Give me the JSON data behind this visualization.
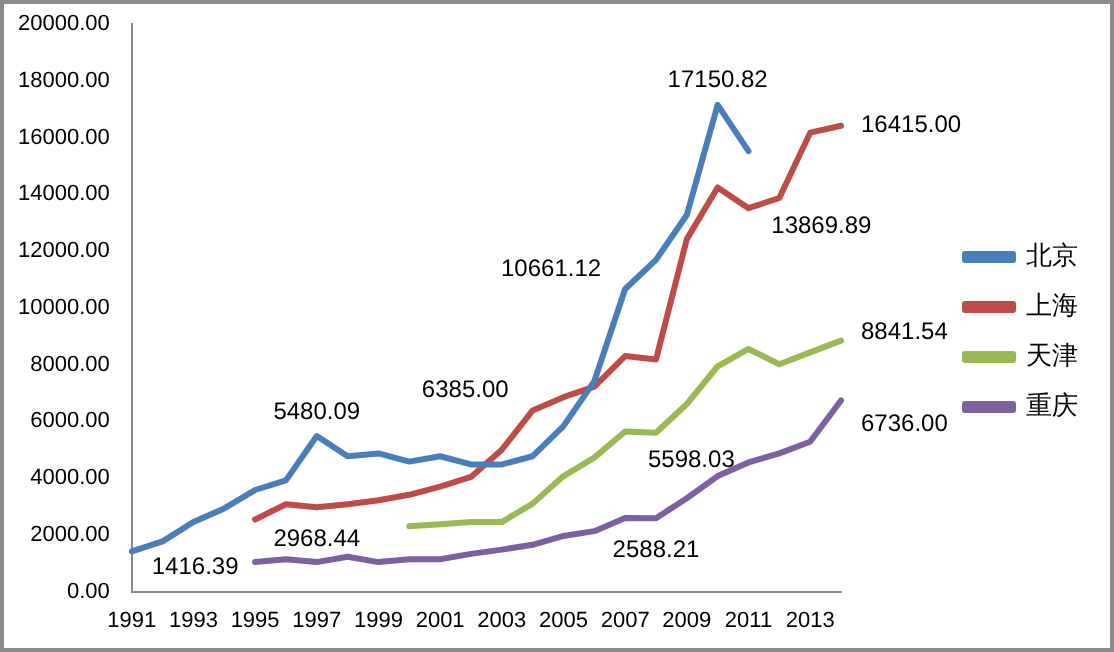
{
  "chart_data": {
    "type": "line",
    "categories": [
      "1991",
      null,
      "1993",
      null,
      "1995",
      null,
      "1997",
      null,
      "1999",
      null,
      "2001",
      null,
      "2003",
      null,
      "2005",
      null,
      "2007",
      null,
      "2009",
      null,
      "2011",
      null,
      "2013",
      null
    ],
    "ylim": [
      0,
      20000
    ],
    "yticks": [
      {
        "value": 0,
        "label": "0.00"
      },
      {
        "value": 2000,
        "label": "2000.00"
      },
      {
        "value": 4000,
        "label": "4000.00"
      },
      {
        "value": 6000,
        "label": "6000.00"
      },
      {
        "value": 8000,
        "label": "8000.00"
      },
      {
        "value": 10000,
        "label": "10000.00"
      },
      {
        "value": 12000,
        "label": "12000.00"
      },
      {
        "value": 14000,
        "label": "14000.00"
      },
      {
        "value": 16000,
        "label": "16000.00"
      },
      {
        "value": 18000,
        "label": "18000.00"
      },
      {
        "value": 20000,
        "label": "20000.00"
      }
    ],
    "grid": false,
    "legend": "right",
    "marker": "none",
    "line_style": "solid",
    "series": [
      {
        "name": "北京",
        "color": "#4a7ebb",
        "values": [
          1416.39,
          1770,
          2450,
          2930,
          3580,
          3920,
          5480.09,
          4770,
          4870,
          4580,
          4770,
          4480,
          4480,
          4770,
          5830,
          7410,
          10661.12,
          11690,
          13270,
          17150.82,
          15520,
          null,
          null,
          null
        ],
        "value_labels": [
          "1416.39",
          null,
          null,
          null,
          null,
          null,
          "5480.09",
          null,
          null,
          null,
          null,
          null,
          null,
          null,
          null,
          null,
          "10661.12",
          null,
          null,
          "17150.82",
          null,
          null,
          null,
          null
        ]
      },
      {
        "name": "上海",
        "color": "#be4b48",
        "values": [
          null,
          null,
          null,
          null,
          2540,
          3080,
          2968.44,
          3080,
          3220,
          3410,
          3700,
          4040,
          5000,
          6385.0,
          6850,
          7220,
          8300,
          8180,
          12420,
          14240,
          13510,
          13869.89,
          16170,
          16415.0
        ],
        "value_labels": [
          null,
          null,
          null,
          null,
          null,
          null,
          "2968.44",
          null,
          null,
          null,
          null,
          null,
          null,
          "6385.00",
          null,
          null,
          null,
          null,
          null,
          null,
          null,
          "13869.89",
          null,
          "16415.00"
        ]
      },
      {
        "name": "天津",
        "color": "#98b954",
        "values": [
          null,
          null,
          null,
          null,
          null,
          null,
          null,
          null,
          null,
          2300,
          2370,
          2450,
          2450,
          3100,
          4070,
          4720,
          5640,
          5598.03,
          6610,
          7940,
          8550,
          8010,
          8430,
          8841.54
        ],
        "value_labels": [
          null,
          null,
          null,
          null,
          null,
          null,
          null,
          null,
          null,
          null,
          null,
          null,
          null,
          null,
          null,
          null,
          null,
          "5598.03",
          null,
          null,
          null,
          null,
          null,
          "8841.54"
        ]
      },
      {
        "name": "重庆",
        "color": "#7d60a0",
        "values": [
          null,
          null,
          null,
          null,
          1040,
          1140,
          1040,
          1230,
          1040,
          1140,
          1140,
          1330,
          1480,
          1650,
          1960,
          2130,
          2590,
          2588.21,
          3290,
          4070,
          4550,
          4870,
          5280,
          6736.0
        ],
        "value_labels": [
          null,
          null,
          null,
          null,
          null,
          null,
          null,
          null,
          null,
          null,
          null,
          null,
          null,
          null,
          null,
          null,
          null,
          "2588.21",
          null,
          null,
          null,
          null,
          null,
          "6736.00"
        ]
      }
    ]
  }
}
